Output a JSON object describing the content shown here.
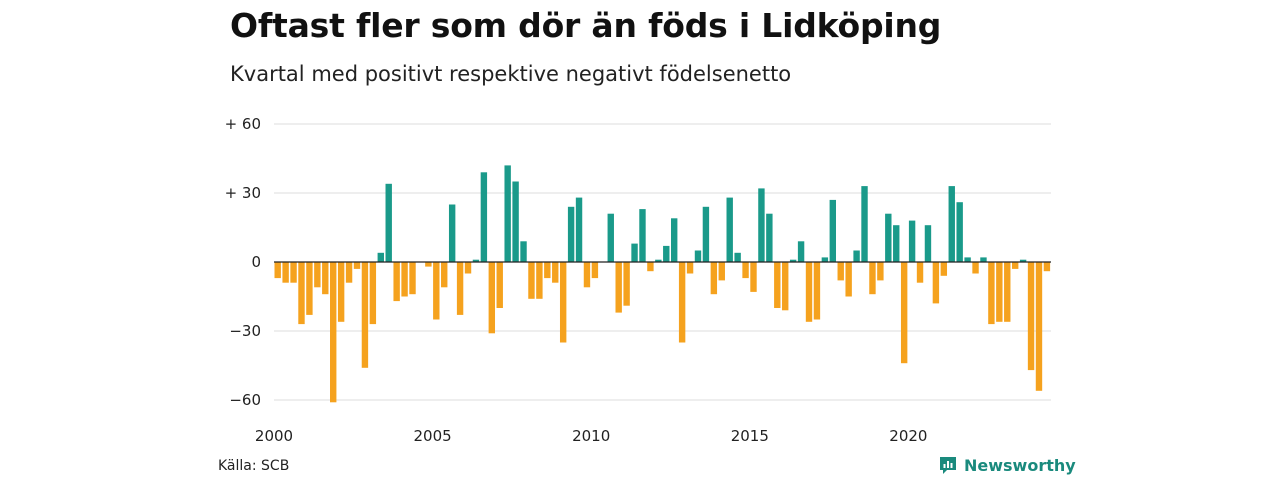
{
  "title": "Oftast fler som dör än föds i Lidköping",
  "subtitle": "Kvartal med positivt respektive negativt födelsenetto",
  "source": "Källa: SCB",
  "brand": "Newsworthy",
  "brand_icon": "newsworthy-logo-icon",
  "colors": {
    "positive": "#1a9a8a",
    "negative": "#f5a21e",
    "grid": "#dddddd",
    "zero": "#222222",
    "brand": "#1a8a7d"
  },
  "chart_data": {
    "type": "bar",
    "title": "Oftast fler som dör än föds i Lidköping",
    "subtitle": "Kvartal med positivt respektive negativt födelsenetto",
    "xlabel": "",
    "ylabel": "",
    "ylim": [
      -60,
      60
    ],
    "y_ticks": [
      60,
      30,
      0,
      -30,
      -60
    ],
    "y_tick_labels": [
      "+ 60",
      "+ 30",
      "0",
      "−30",
      "−60"
    ],
    "x_ticks": [
      2000,
      2005,
      2010,
      2015,
      2020
    ],
    "x_tick_labels": [
      "2000",
      "2005",
      "2010",
      "2015",
      "2020"
    ],
    "x_start": 2000,
    "periods_per_year": 4,
    "grid": true,
    "series": [
      {
        "values": [
          -7,
          -9,
          -9,
          -27,
          -23,
          -11,
          -14,
          -61,
          -26,
          -9,
          -3,
          -46,
          -27,
          4,
          34,
          -17,
          -15,
          -14,
          0,
          -2,
          -25,
          -11,
          25,
          -23,
          -5,
          1,
          39,
          -31,
          -20,
          42,
          35,
          9,
          -16,
          -16,
          -7,
          -9,
          -35,
          24,
          28,
          -11,
          -7,
          0,
          21,
          -22,
          -19,
          8,
          23,
          -4,
          1,
          7,
          19,
          -35,
          -5,
          5,
          24,
          -14,
          -8,
          28,
          4,
          -7,
          -13,
          32,
          21,
          -20,
          -21,
          1,
          9,
          -26,
          -25,
          2,
          27,
          -8,
          -15,
          5,
          33,
          -14,
          -8,
          21,
          16,
          -44,
          18,
          -9,
          16,
          -18,
          -6,
          33,
          26,
          2,
          -5,
          2,
          -27,
          -26,
          -26,
          -3,
          1,
          -47,
          -56,
          -4
        ]
      }
    ]
  }
}
